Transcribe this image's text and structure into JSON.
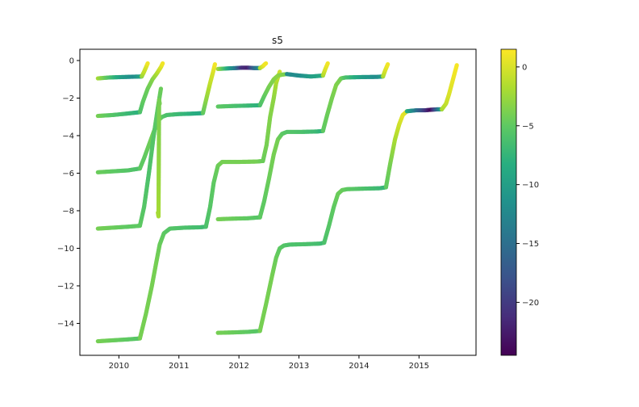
{
  "chart_data": {
    "type": "scatter",
    "title": "s5",
    "xlabel": "",
    "ylabel": "",
    "xlim": [
      2009.35,
      2015.95
    ],
    "ylim": [
      -15.7,
      0.6
    ],
    "x_ticks": [
      2010,
      2011,
      2012,
      2013,
      2014,
      2015
    ],
    "y_ticks": [
      0,
      -2,
      -4,
      -6,
      -8,
      -10,
      -12,
      -14
    ],
    "grid": false,
    "colorbar": {
      "cmap": "viridis",
      "range": [
        -24.5,
        1.5
      ],
      "ticks": [
        0,
        -5,
        -10,
        -15,
        -20
      ]
    },
    "series": [
      {
        "segments": [
          {
            "x": [
              2009.65,
              2009.85,
              2010.05,
              2010.25,
              2010.38
            ],
            "y": [
              -0.95,
              -0.9,
              -0.88,
              -0.86,
              -0.85
            ],
            "c": [
              -2.0,
              -6.0,
              -10.0,
              -12.0,
              -9.0
            ]
          },
          {
            "x": [
              2010.38,
              2010.42,
              2010.46,
              2010.48
            ],
            "y": [
              -0.85,
              -0.6,
              -0.3,
              -0.15
            ],
            "c": [
              -3.0,
              -1.0,
              0.0,
              1.0
            ]
          },
          {
            "x": [
              2009.65,
              2009.9,
              2010.15,
              2010.35
            ],
            "y": [
              -2.95,
              -2.9,
              -2.82,
              -2.75
            ],
            "c": [
              -4.0,
              -5.5,
              -7.0,
              -8.0
            ]
          },
          {
            "x": [
              2010.35,
              2010.4,
              2010.48,
              2010.56,
              2010.63,
              2010.7,
              2010.73
            ],
            "y": [
              -2.75,
              -2.2,
              -1.5,
              -1.0,
              -0.7,
              -0.35,
              -0.15
            ],
            "c": [
              -6.0,
              -5.0,
              -4.5,
              -3.5,
              -2.0,
              0.0,
              1.0
            ]
          },
          {
            "x": [
              2009.65,
              2009.9,
              2010.15,
              2010.35
            ],
            "y": [
              -5.95,
              -5.9,
              -5.85,
              -5.75
            ],
            "c": [
              -4.5,
              -5.0,
              -5.5,
              -6.0
            ]
          },
          {
            "x": [
              2010.35,
              2010.42,
              2010.5,
              2010.58,
              2010.65,
              2010.72,
              2010.8,
              2011.0,
              2011.2,
              2011.4
            ],
            "y": [
              -5.75,
              -5.2,
              -4.5,
              -3.8,
              -3.2,
              -3.0,
              -2.9,
              -2.85,
              -2.83,
              -2.8
            ],
            "c": [
              -5.0,
              -5.0,
              -4.5,
              -4.0,
              -4.0,
              -5.0,
              -6.0,
              -7.0,
              -8.0,
              -9.0
            ]
          },
          {
            "x": [
              2011.4,
              2011.46,
              2011.52,
              2011.57,
              2011.6
            ],
            "y": [
              -2.8,
              -2.0,
              -1.2,
              -0.6,
              -0.2
            ],
            "c": [
              -5.0,
              -3.0,
              -1.0,
              0.0,
              1.0
            ]
          },
          {
            "x": [
              2009.65,
              2009.9,
              2010.15,
              2010.35
            ],
            "y": [
              -8.95,
              -8.9,
              -8.85,
              -8.8
            ],
            "c": [
              -4.0,
              -4.5,
              -5.0,
              -5.0
            ]
          },
          {
            "x": [
              2010.35,
              2010.42,
              2010.5,
              2010.58,
              2010.65,
              2010.7
            ],
            "y": [
              -8.8,
              -7.8,
              -6.0,
              -4.0,
              -2.5,
              -1.5
            ],
            "c": [
              -5.0,
              -5.5,
              -6.0,
              -5.5,
              -5.0,
              -4.5
            ]
          },
          {
            "x": [
              2010.65,
              2010.66,
              2010.67,
              2010.68
            ],
            "y": [
              -8.1,
              -8.3,
              -2.1,
              -2.3
            ],
            "c": [
              -2.0,
              -2.0,
              -4.0,
              -4.0
            ]
          },
          {
            "x": [
              2009.65,
              2009.9,
              2010.15,
              2010.35
            ],
            "y": [
              -14.95,
              -14.9,
              -14.85,
              -14.8
            ],
            "c": [
              -4.0,
              -4.5,
              -5.0,
              -5.5
            ]
          },
          {
            "x": [
              2010.35,
              2010.45,
              2010.55,
              2010.62,
              2010.68,
              2010.75,
              2010.85,
              2011.1,
              2011.35,
              2011.45
            ],
            "y": [
              -14.8,
              -13.5,
              -12.0,
              -10.8,
              -9.8,
              -9.2,
              -8.95,
              -8.9,
              -8.88,
              -8.85
            ],
            "c": [
              -4.0,
              -4.0,
              -4.0,
              -4.0,
              -4.5,
              -5.0,
              -5.5,
              -6.0,
              -6.5,
              -7.0
            ]
          },
          {
            "x": [
              2011.45,
              2011.52,
              2011.58,
              2011.65,
              2011.72,
              2012.0,
              2012.3,
              2012.4
            ],
            "y": [
              -8.85,
              -7.8,
              -6.5,
              -5.6,
              -5.4,
              -5.4,
              -5.38,
              -5.35
            ],
            "c": [
              -6.0,
              -5.5,
              -5.0,
              -4.5,
              -4.0,
              -4.0,
              -4.0,
              -4.5
            ]
          },
          {
            "x": [
              2012.4,
              2012.46,
              2012.52,
              2012.58,
              2012.62,
              2012.68
            ],
            "y": [
              -5.35,
              -4.5,
              -3.0,
              -2.0,
              -1.2,
              -0.6
            ],
            "c": [
              -4.5,
              -4.0,
              -3.5,
              -3.0,
              -2.0,
              -0.5
            ]
          },
          {
            "x": [
              2011.65,
              2011.8,
              2011.95,
              2012.05,
              2012.15,
              2012.25,
              2012.35
            ],
            "y": [
              -0.45,
              -0.42,
              -0.4,
              -0.38,
              -0.38,
              -0.4,
              -0.4
            ],
            "c": [
              -2.0,
              -8.0,
              -14.0,
              -21.0,
              -22.0,
              -16.0,
              -12.0
            ]
          },
          {
            "x": [
              2012.35,
              2012.4,
              2012.43,
              2012.45
            ],
            "y": [
              -0.4,
              -0.3,
              -0.2,
              -0.15
            ],
            "c": [
              -2.0,
              0.0,
              1.0,
              1.0
            ]
          },
          {
            "x": [
              2011.65,
              2011.9,
              2012.15,
              2012.35
            ],
            "y": [
              -2.45,
              -2.42,
              -2.4,
              -2.38
            ],
            "c": [
              -5.0,
              -6.0,
              -7.0,
              -8.0
            ]
          },
          {
            "x": [
              2012.35,
              2012.42,
              2012.5,
              2012.58,
              2012.65,
              2012.72,
              2012.8
            ],
            "y": [
              -2.38,
              -1.9,
              -1.4,
              -1.0,
              -0.8,
              -0.75,
              -0.72
            ],
            "c": [
              -6.0,
              -5.0,
              -4.0,
              -3.5,
              -3.0,
              -3.5,
              -4.0
            ]
          },
          {
            "x": [
              2012.8,
              2013.0,
              2013.2,
              2013.4
            ],
            "y": [
              -0.72,
              -0.8,
              -0.85,
              -0.8
            ],
            "c": [
              -12.0,
              -12.0,
              -10.0,
              -9.0
            ]
          },
          {
            "x": [
              2013.4,
              2013.44,
              2013.48
            ],
            "y": [
              -0.8,
              -0.45,
              -0.15
            ],
            "c": [
              -2.0,
              0.0,
              1.0
            ]
          },
          {
            "x": [
              2011.65,
              2011.9,
              2012.15,
              2012.35
            ],
            "y": [
              -8.45,
              -8.42,
              -8.4,
              -8.35
            ],
            "c": [
              -4.0,
              -4.5,
              -5.0,
              -5.5
            ]
          },
          {
            "x": [
              2012.35,
              2012.42,
              2012.5,
              2012.58,
              2012.65,
              2012.72,
              2012.8,
              2013.05,
              2013.3,
              2013.4
            ],
            "y": [
              -8.35,
              -7.5,
              -6.3,
              -5.0,
              -4.2,
              -3.9,
              -3.8,
              -3.8,
              -3.78,
              -3.75
            ],
            "c": [
              -5.0,
              -5.0,
              -4.5,
              -4.0,
              -4.0,
              -5.0,
              -5.5,
              -6.0,
              -7.0,
              -8.0
            ]
          },
          {
            "x": [
              2013.4,
              2013.47,
              2013.55,
              2013.62,
              2013.7,
              2013.78,
              2014.05,
              2014.3,
              2014.4
            ],
            "y": [
              -3.75,
              -2.9,
              -2.0,
              -1.3,
              -0.95,
              -0.9,
              -0.88,
              -0.87,
              -0.85
            ],
            "c": [
              -5.0,
              -4.5,
              -4.0,
              -3.5,
              -4.0,
              -6.0,
              -10.0,
              -12.0,
              -10.0
            ]
          },
          {
            "x": [
              2014.4,
              2014.44,
              2014.48
            ],
            "y": [
              -0.85,
              -0.5,
              -0.2
            ],
            "c": [
              -2.0,
              0.0,
              1.0
            ]
          },
          {
            "x": [
              2011.65,
              2011.9,
              2012.15,
              2012.35
            ],
            "y": [
              -14.5,
              -14.48,
              -14.45,
              -14.4
            ],
            "c": [
              -4.0,
              -4.5,
              -5.0,
              -5.5
            ]
          },
          {
            "x": [
              2012.35,
              2012.45,
              2012.55,
              2012.62,
              2012.68,
              2012.75,
              2012.85,
              2013.1,
              2013.35,
              2013.42
            ],
            "y": [
              -14.4,
              -13.0,
              -11.5,
              -10.5,
              -10.0,
              -9.85,
              -9.8,
              -9.78,
              -9.75,
              -9.7
            ],
            "c": [
              -4.0,
              -4.0,
              -4.0,
              -4.5,
              -5.0,
              -5.5,
              -6.0,
              -6.0,
              -6.5,
              -7.0
            ]
          },
          {
            "x": [
              2013.42,
              2013.5,
              2013.58,
              2013.65,
              2013.72,
              2013.8,
              2014.1,
              2014.35,
              2014.45
            ],
            "y": [
              -9.7,
              -8.8,
              -7.8,
              -7.1,
              -6.9,
              -6.85,
              -6.82,
              -6.8,
              -6.75
            ],
            "c": [
              -6.0,
              -5.5,
              -5.0,
              -4.5,
              -4.5,
              -5.0,
              -6.0,
              -7.0,
              -7.5
            ]
          },
          {
            "x": [
              2014.45,
              2014.52,
              2014.6,
              2014.67,
              2014.73,
              2014.8
            ],
            "y": [
              -6.75,
              -5.5,
              -4.2,
              -3.4,
              -2.9,
              -2.7
            ],
            "c": [
              -5.0,
              -4.0,
              -2.0,
              -0.5,
              0.5,
              0.0
            ]
          },
          {
            "x": [
              2014.8,
              2014.95,
              2015.1,
              2015.2,
              2015.3,
              2015.38
            ],
            "y": [
              -2.7,
              -2.65,
              -2.65,
              -2.62,
              -2.6,
              -2.6
            ],
            "c": [
              -8.0,
              -14.0,
              -20.0,
              -24.0,
              -16.0,
              -9.0
            ]
          },
          {
            "x": [
              2015.38,
              2015.45,
              2015.5,
              2015.55,
              2015.6,
              2015.63
            ],
            "y": [
              -2.6,
              -2.3,
              -1.8,
              -1.2,
              -0.6,
              -0.25
            ],
            "c": [
              -2.0,
              -1.0,
              0.0,
              0.5,
              1.0,
              1.2
            ]
          }
        ]
      }
    ]
  }
}
